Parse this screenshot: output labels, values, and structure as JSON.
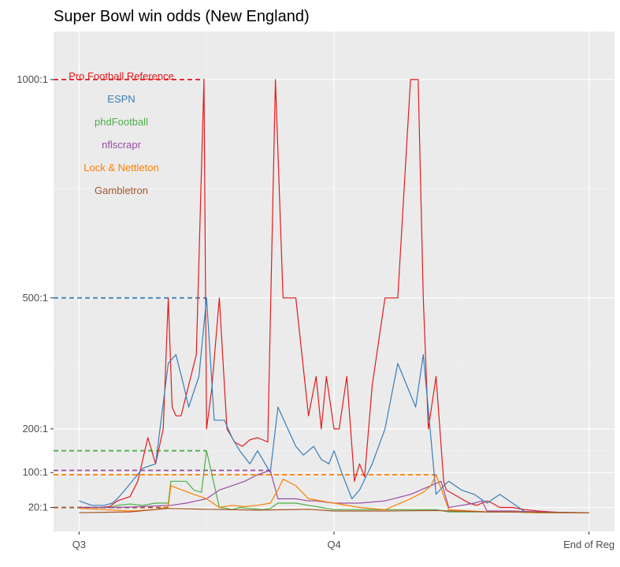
{
  "chart_data": {
    "type": "line",
    "title": "Super Bowl win odds (New England)",
    "xlabel": "",
    "ylabel": "",
    "x_ticks": [
      {
        "label": "Q3",
        "value": 0
      },
      {
        "label": "Q4",
        "value": 1
      },
      {
        "label": "End of Reg",
        "value": 2
      }
    ],
    "y_ticks": [
      {
        "label": "1000:1",
        "value": 1000
      },
      {
        "label": "500:1",
        "value": 500
      },
      {
        "label": "200:1",
        "value": 200
      },
      {
        "label": "100:1",
        "value": 100
      },
      {
        "label": "20:1",
        "value": 20
      }
    ],
    "xlim": [
      -0.1,
      2.1
    ],
    "ylim": [
      -35,
      1110
    ],
    "grid": true,
    "legend_position": "top-left",
    "series": [
      {
        "name": "Pro Football Reference",
        "color": "#E41A1C",
        "max_value": 1000,
        "x": [
          0,
          0.08,
          0.12,
          0.15,
          0.2,
          0.23,
          0.27,
          0.3,
          0.33,
          0.35,
          0.365,
          0.38,
          0.4,
          0.43,
          0.46,
          0.49,
          0.5,
          0.52,
          0.55,
          0.58,
          0.61,
          0.64,
          0.67,
          0.7,
          0.74,
          0.77,
          0.8,
          0.85,
          0.9,
          0.93,
          0.95,
          0.97,
          1.0,
          1.02,
          1.05,
          1.08,
          1.1,
          1.12,
          1.15,
          1.2,
          1.25,
          1.3,
          1.33,
          1.35,
          1.37,
          1.4,
          1.43,
          1.44,
          1.47,
          1.5,
          1.53,
          1.56,
          1.6,
          1.62,
          1.65,
          1.7,
          1.75,
          1.8,
          1.85,
          1.9,
          2.0
        ],
        "y": [
          20,
          20,
          22,
          35,
          45,
          80,
          180,
          120,
          200,
          500,
          250,
          230,
          230,
          300,
          370,
          1000,
          200,
          290,
          500,
          200,
          170,
          160,
          175,
          180,
          170,
          1000,
          500,
          500,
          230,
          320,
          200,
          320,
          200,
          200,
          320,
          80,
          120,
          90,
          300,
          500,
          500,
          1000,
          1000,
          500,
          200,
          320,
          80,
          60,
          50,
          40,
          30,
          25,
          35,
          30,
          20,
          20,
          15,
          12,
          10,
          8,
          8
        ]
      },
      {
        "name": "ESPN",
        "color": "#377EB8",
        "max_value": 500,
        "x": [
          0,
          0.05,
          0.1,
          0.13,
          0.15,
          0.18,
          0.25,
          0.3,
          0.35,
          0.38,
          0.41,
          0.43,
          0.47,
          0.5,
          0.53,
          0.57,
          0.6,
          0.63,
          0.67,
          0.7,
          0.75,
          0.78,
          0.85,
          0.88,
          0.92,
          0.95,
          0.98,
          1.0,
          1.03,
          1.07,
          1.1,
          1.15,
          1.2,
          1.25,
          1.32,
          1.35,
          1.4,
          1.43,
          1.45,
          1.5,
          1.55,
          1.6,
          1.65,
          1.7,
          1.75,
          1.8,
          2.0
        ],
        "y": [
          35,
          25,
          25,
          30,
          40,
          60,
          110,
          120,
          350,
          370,
          300,
          250,
          320,
          500,
          220,
          220,
          180,
          150,
          120,
          150,
          100,
          250,
          160,
          140,
          160,
          130,
          120,
          150,
          100,
          40,
          60,
          120,
          200,
          350,
          250,
          370,
          50,
          70,
          80,
          60,
          50,
          30,
          50,
          30,
          10,
          8,
          8
        ]
      },
      {
        "name": "phdFootball",
        "color": "#4DAF4A",
        "max_value": 150,
        "x": [
          0,
          0.08,
          0.12,
          0.15,
          0.2,
          0.25,
          0.3,
          0.35,
          0.36,
          0.42,
          0.45,
          0.48,
          0.5,
          0.55,
          0.58,
          0.6,
          0.63,
          0.67,
          0.72,
          0.75,
          0.78,
          0.85,
          0.9,
          0.95,
          1.0,
          1.1,
          1.2,
          1.3,
          1.4,
          1.45,
          1.5,
          1.6,
          1.7,
          1.8,
          2.0
        ],
        "y": [
          20,
          20,
          20,
          25,
          28,
          25,
          30,
          30,
          80,
          80,
          60,
          55,
          150,
          20,
          18,
          15,
          20,
          18,
          15,
          18,
          30,
          30,
          25,
          20,
          15,
          15,
          15,
          15,
          15,
          10,
          10,
          10,
          10,
          8,
          8
        ]
      },
      {
        "name": "nflscrapr",
        "color": "#984EA3",
        "max_value": 105,
        "x": [
          0,
          0.08,
          0.12,
          0.15,
          0.25,
          0.35,
          0.36,
          0.42,
          0.46,
          0.5,
          0.55,
          0.6,
          0.65,
          0.7,
          0.75,
          0.78,
          0.85,
          0.9,
          0.93,
          1.0,
          1.1,
          1.2,
          1.3,
          1.4,
          1.42,
          1.45,
          1.5,
          1.55,
          1.58,
          1.6,
          1.7,
          1.8,
          2.0
        ],
        "y": [
          20,
          20,
          20,
          20,
          22,
          25,
          25,
          30,
          35,
          40,
          60,
          70,
          80,
          95,
          105,
          40,
          40,
          35,
          35,
          30,
          30,
          35,
          50,
          75,
          80,
          20,
          25,
          30,
          35,
          12,
          12,
          10,
          8
        ]
      },
      {
        "name": "Lock & Nettleton",
        "color": "#FF7F00",
        "max_value": 95,
        "x": [
          0,
          0.1,
          0.2,
          0.3,
          0.35,
          0.36,
          0.45,
          0.5,
          0.55,
          0.6,
          0.65,
          0.7,
          0.75,
          0.78,
          0.8,
          0.85,
          0.9,
          1.0,
          1.1,
          1.2,
          1.3,
          1.35,
          1.38,
          1.4,
          1.45,
          1.6,
          1.7,
          1.8,
          2.0
        ],
        "y": [
          18,
          15,
          12,
          15,
          22,
          70,
          50,
          40,
          20,
          25,
          22,
          25,
          30,
          60,
          85,
          70,
          40,
          30,
          20,
          15,
          40,
          55,
          70,
          95,
          15,
          10,
          10,
          8,
          8
        ]
      },
      {
        "name": "Gambletron",
        "color": "#A65628",
        "max_value": 20,
        "x": [
          0,
          0.2,
          0.35,
          0.5,
          0.7,
          0.9,
          1.0,
          1.2,
          1.4,
          1.6,
          1.8,
          2.0
        ],
        "y": [
          8,
          10,
          18,
          16,
          14,
          16,
          12,
          12,
          13,
          10,
          9,
          8
        ]
      }
    ]
  }
}
